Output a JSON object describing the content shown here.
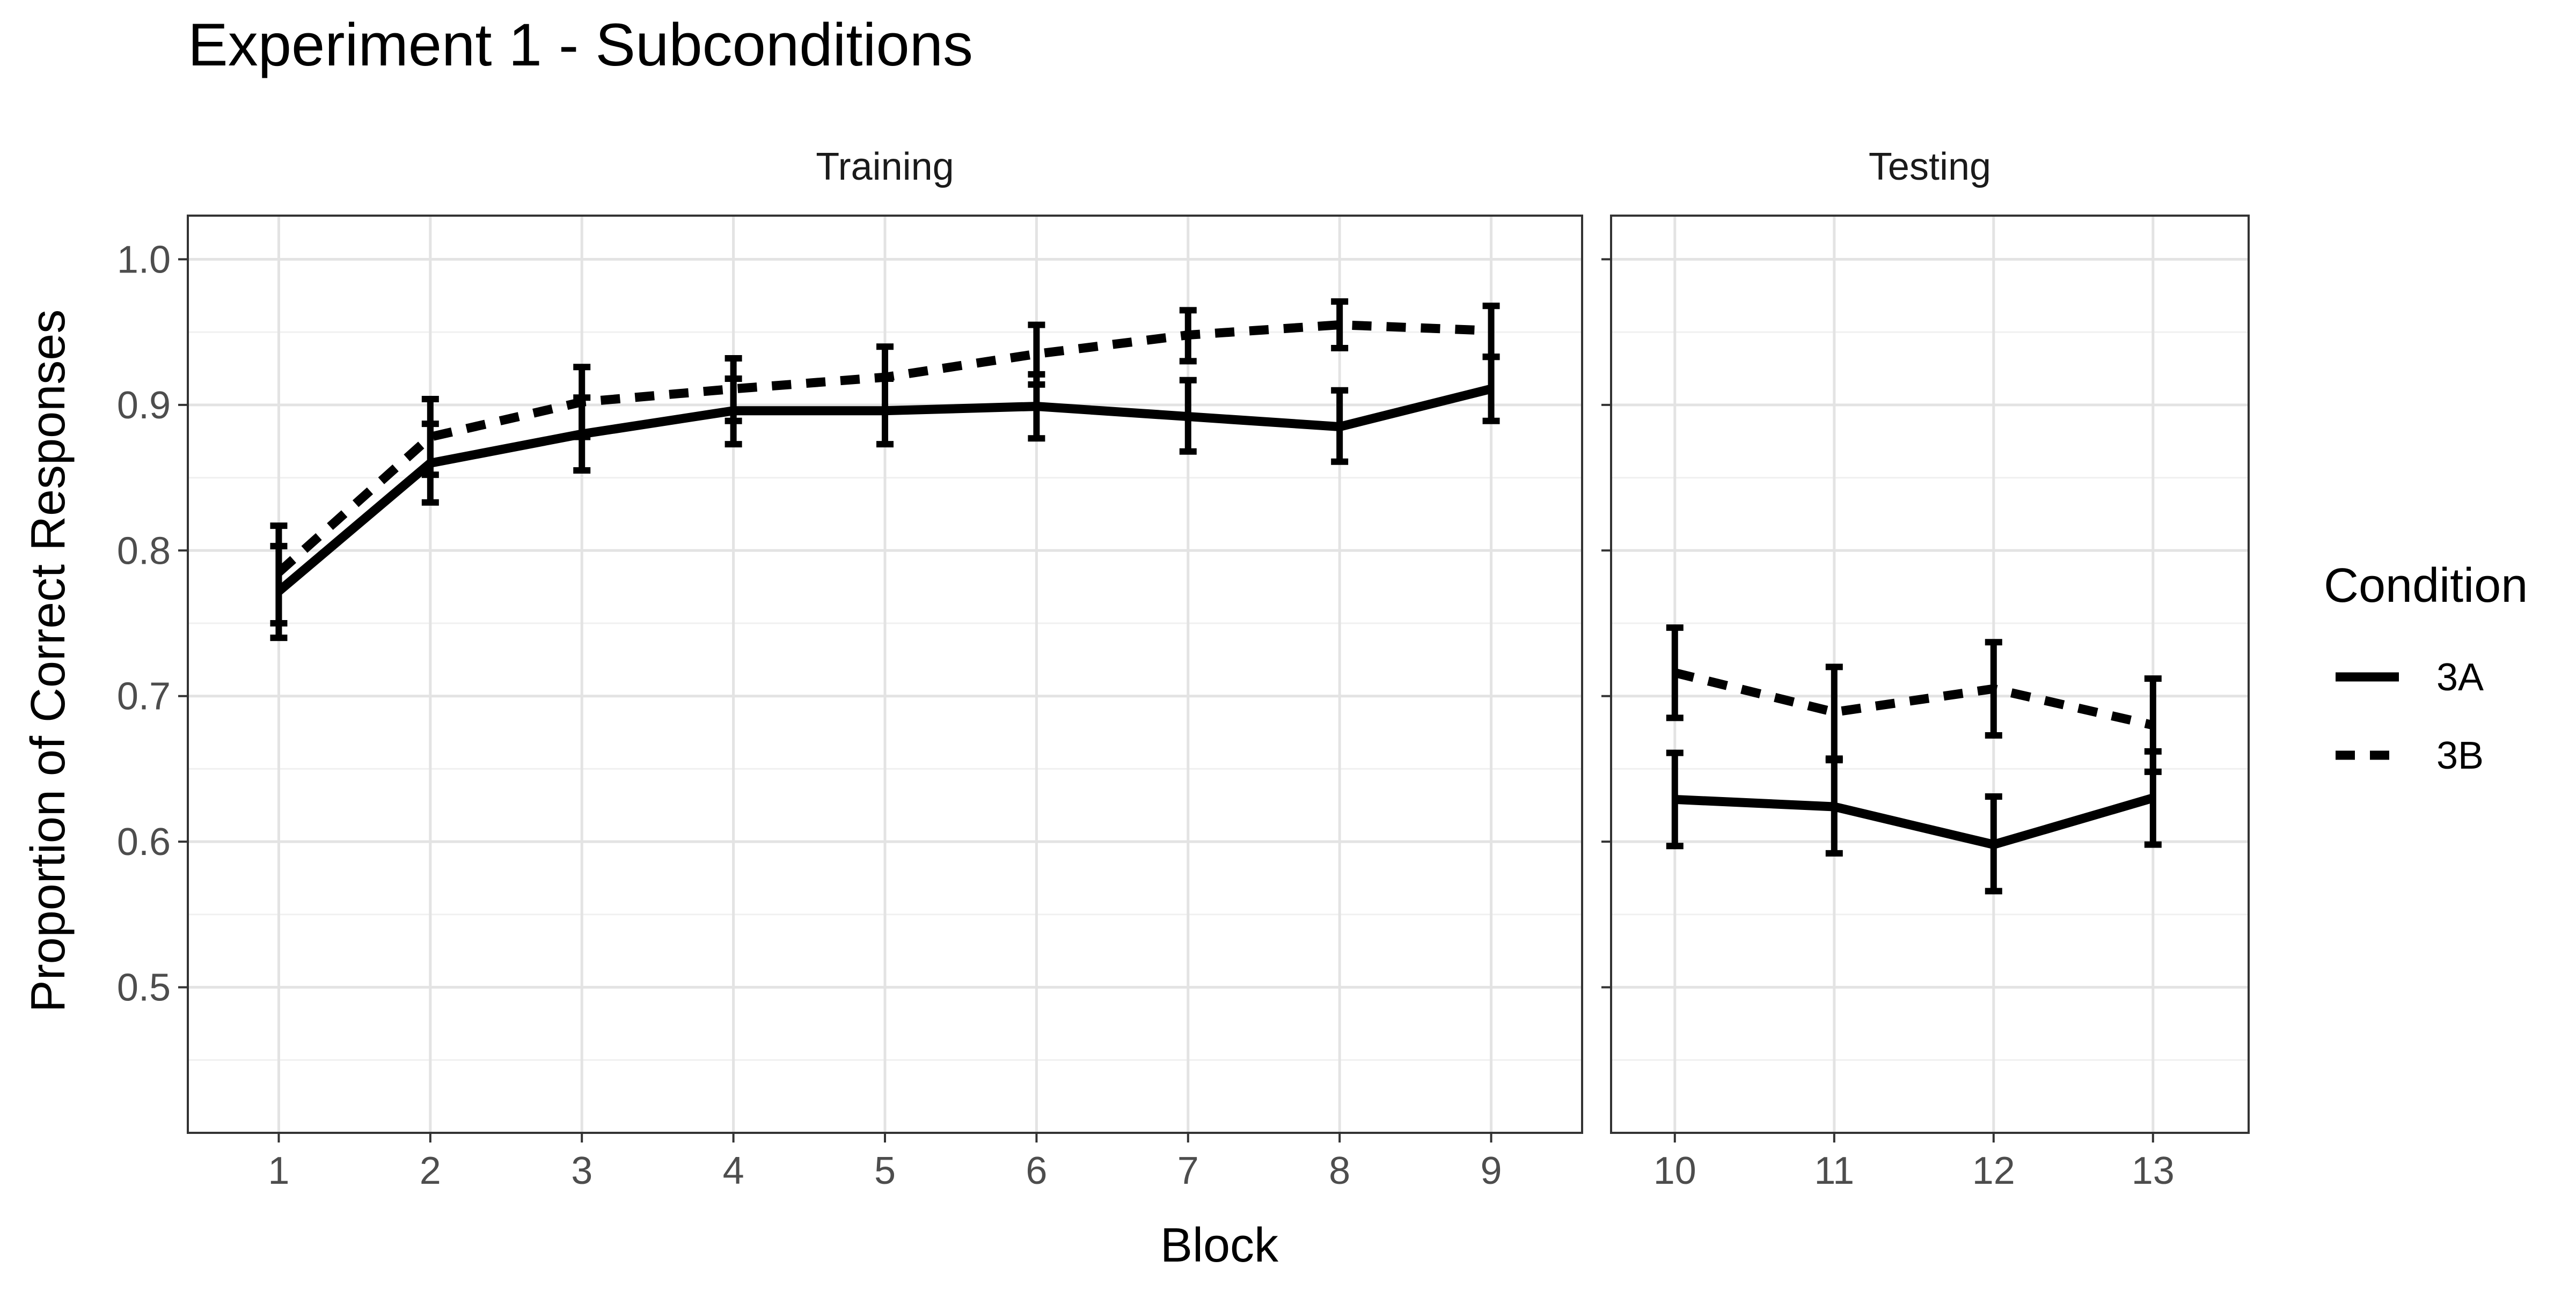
{
  "chart_data": {
    "type": "line",
    "title": "Experiment 1 - Subconditions",
    "xlabel": "Block",
    "ylabel": "Proportion of Correct Responses",
    "ylim": [
      0.4,
      1.03
    ],
    "yticks": [
      0.5,
      0.6,
      0.7,
      0.8,
      0.9,
      1.0
    ],
    "ytick_labels": [
      "0.5",
      "0.6",
      "0.7",
      "0.8",
      "0.9",
      "1.0"
    ],
    "grid": true,
    "legend": {
      "title": "Condition",
      "position": "right",
      "entries": [
        "3A",
        "3B"
      ]
    },
    "panels": [
      {
        "label": "Training",
        "x": [
          1,
          2,
          3,
          4,
          5,
          6,
          7,
          8,
          9
        ],
        "xlim": [
          0.4,
          9.6
        ],
        "series": [
          {
            "name": "3A",
            "style": "solid",
            "y": [
              0.772,
              0.86,
              0.88,
              0.896,
              0.896,
              0.899,
              0.892,
              0.885,
              0.911
            ],
            "ymin": [
              0.74,
              0.833,
              0.855,
              0.873,
              0.873,
              0.877,
              0.868,
              0.861,
              0.889
            ],
            "ymax": [
              0.803,
              0.887,
              0.905,
              0.918,
              0.918,
              0.921,
              0.917,
              0.91,
              0.933
            ]
          },
          {
            "name": "3B",
            "style": "dashed",
            "y": [
              0.785,
              0.878,
              0.902,
              0.911,
              0.919,
              0.935,
              0.948,
              0.955,
              0.951
            ],
            "ymin": [
              0.75,
              0.852,
              0.878,
              0.889,
              0.896,
              0.914,
              0.93,
              0.939,
              0.933
            ],
            "ymax": [
              0.817,
              0.904,
              0.926,
              0.932,
              0.94,
              0.955,
              0.965,
              0.971,
              0.968
            ]
          }
        ]
      },
      {
        "label": "Testing",
        "x": [
          10,
          11,
          12,
          13
        ],
        "xlim": [
          9.6,
          13.6
        ],
        "series": [
          {
            "name": "3A",
            "style": "solid",
            "y": [
              0.629,
              0.624,
              0.598,
              0.63
            ],
            "ymin": [
              0.597,
              0.592,
              0.566,
              0.598
            ],
            "ymax": [
              0.661,
              0.656,
              0.631,
              0.662
            ]
          },
          {
            "name": "3B",
            "style": "dashed",
            "y": [
              0.716,
              0.689,
              0.705,
              0.68
            ],
            "ymin": [
              0.685,
              0.657,
              0.673,
              0.648
            ],
            "ymax": [
              0.747,
              0.72,
              0.737,
              0.712
            ]
          }
        ]
      }
    ]
  }
}
